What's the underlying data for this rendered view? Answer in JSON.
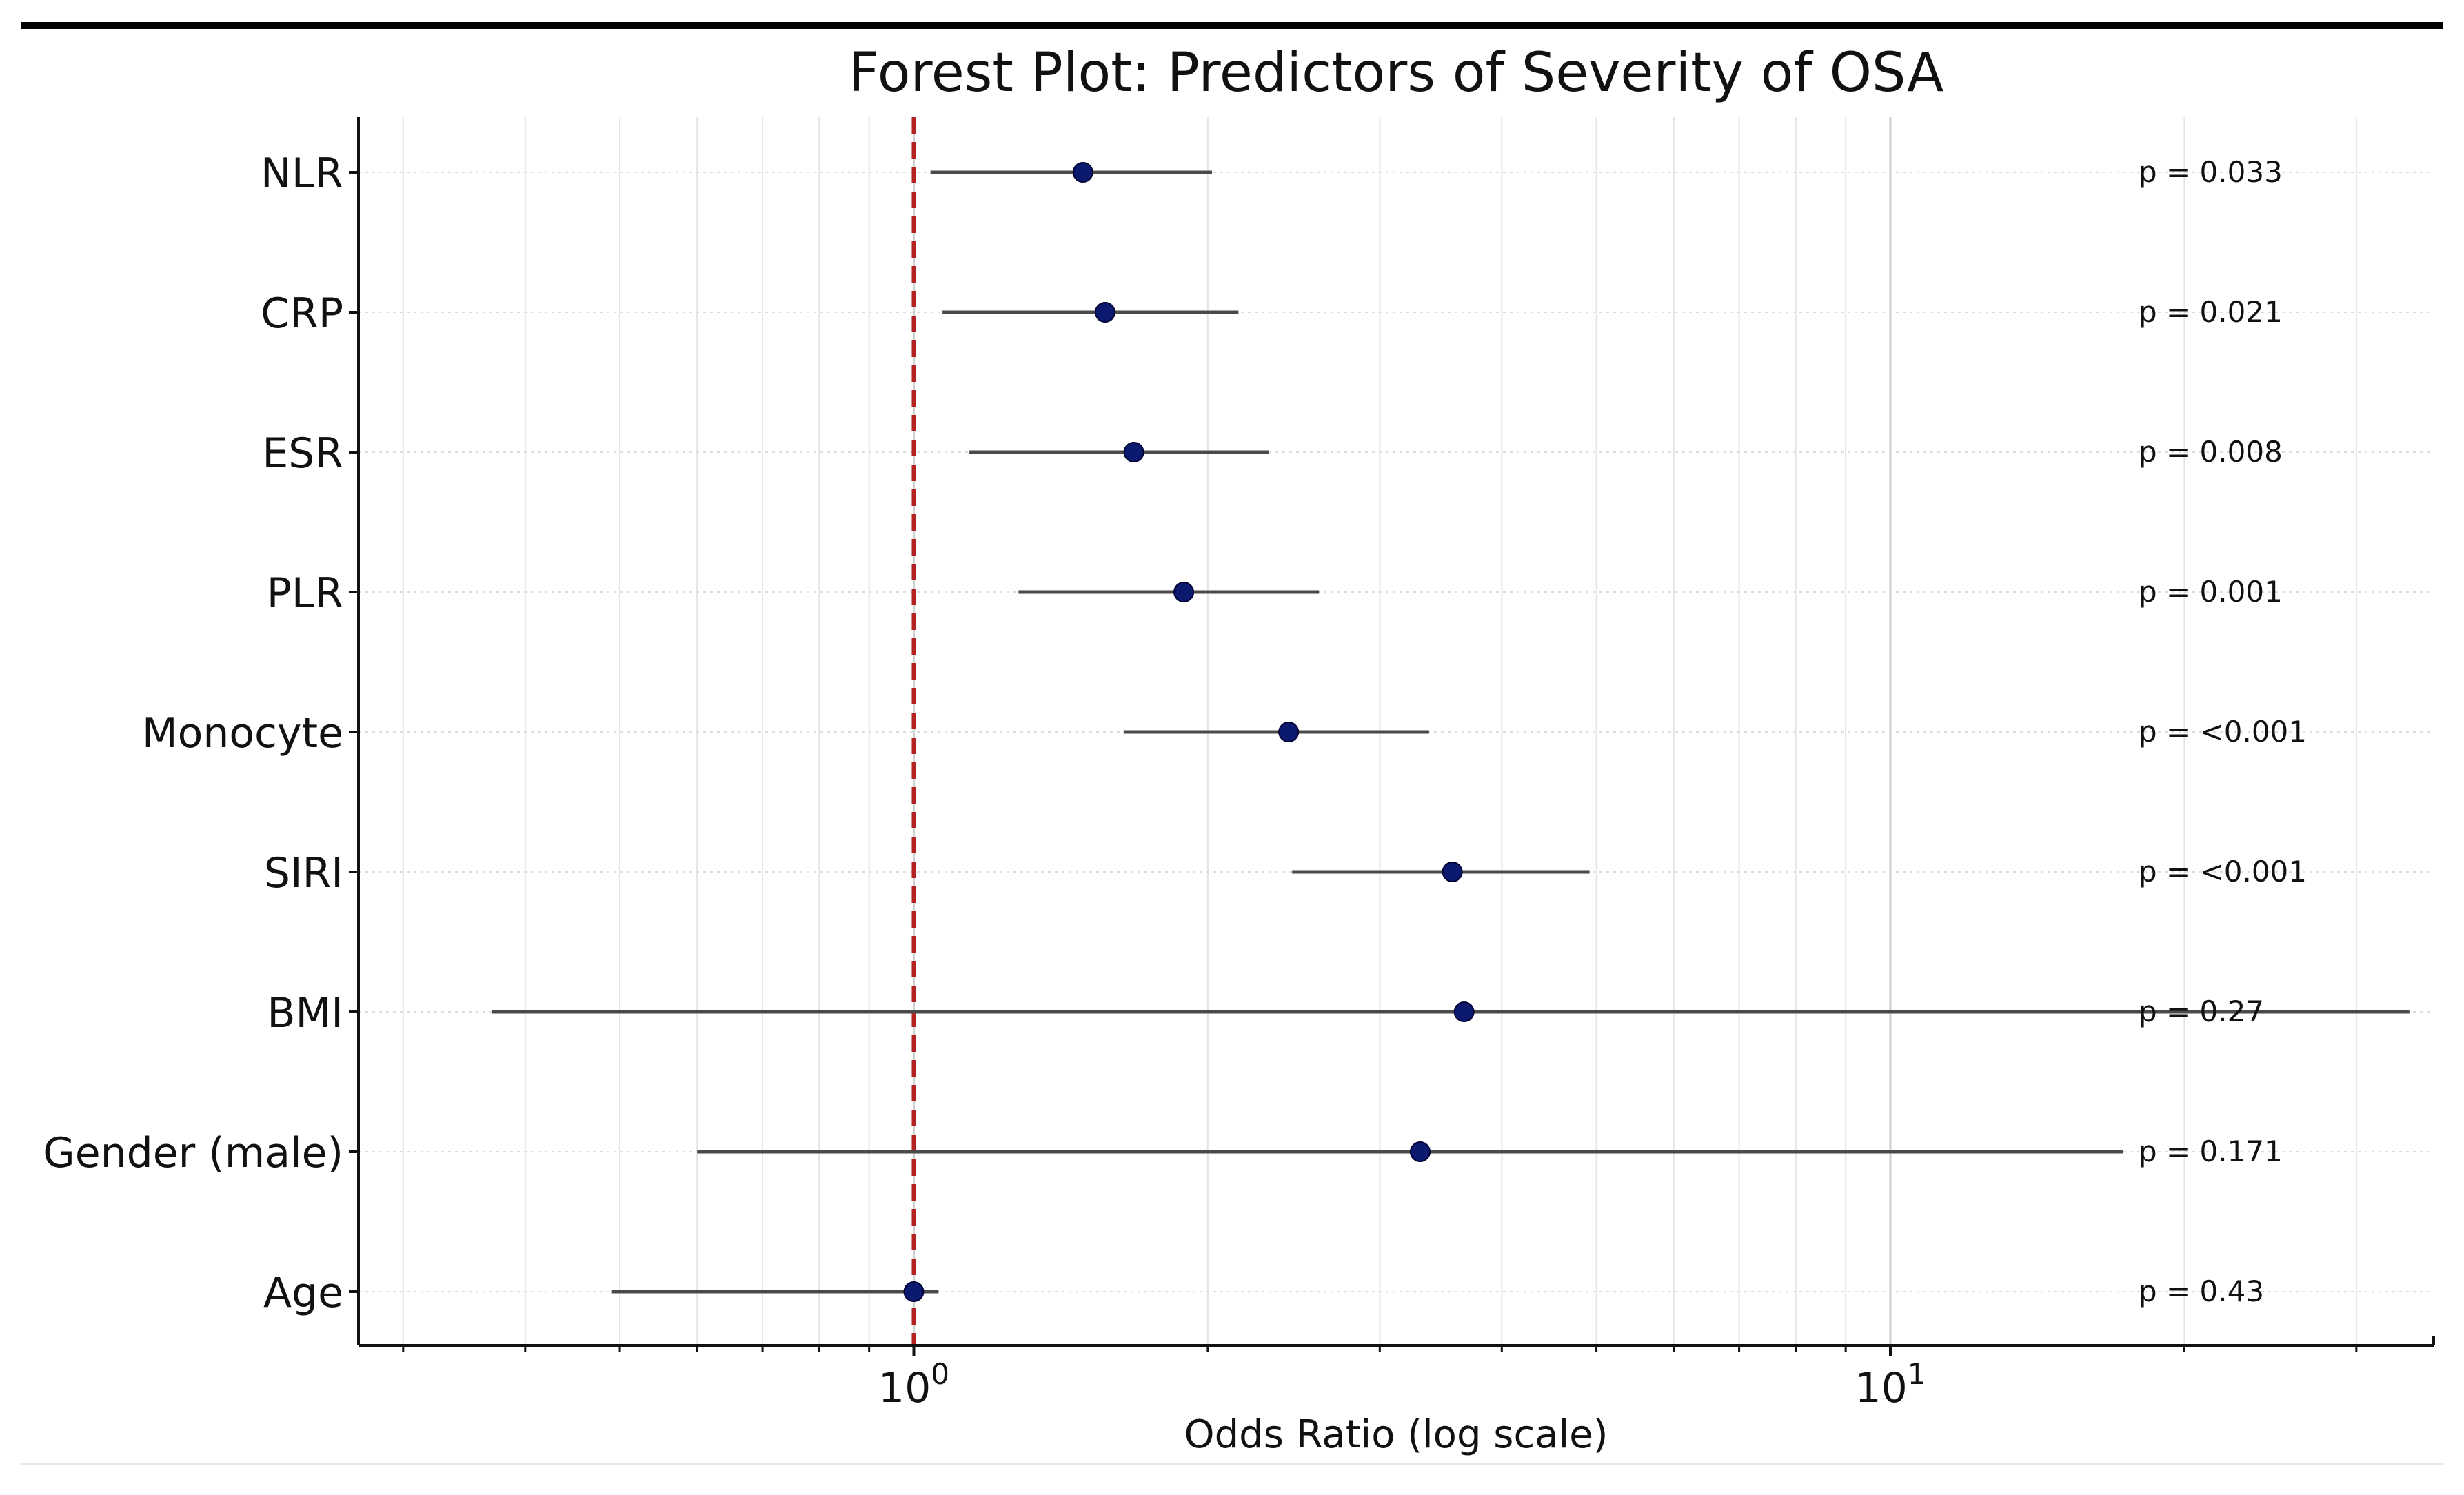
{
  "chart_data": {
    "type": "forest",
    "title": "Forest Plot: Predictors of Severity of OSA",
    "xlabel": "Odds Ratio (log scale)",
    "ylabel": "",
    "xscale": "log",
    "xlim": [
      0.27,
      36
    ],
    "grid": true,
    "reference_line": {
      "x": 1,
      "style": "dashed",
      "color": "#b22222"
    },
    "xticks": [
      {
        "value": 1,
        "base": "10",
        "exp": "0"
      },
      {
        "value": 10,
        "base": "10",
        "exp": "1"
      }
    ],
    "categories": [
      "NLR",
      "CRP",
      "ESR",
      "PLR",
      "Monocyte",
      "SIRI",
      "BMI",
      "Gender (male)",
      "Age"
    ],
    "or": [
      1.49,
      1.57,
      1.68,
      1.89,
      2.42,
      3.56,
      3.66,
      3.3,
      1.0
    ],
    "ci_low": [
      1.04,
      1.07,
      1.14,
      1.28,
      1.64,
      2.44,
      0.37,
      0.6,
      0.49
    ],
    "ci_high": [
      2.02,
      2.15,
      2.31,
      2.6,
      3.37,
      4.92,
      34.0,
      17.3,
      1.06
    ],
    "p_labels": [
      "p = 0.033",
      "p = 0.021",
      "p = 0.008",
      "p = 0.001",
      "p = <0.001",
      "p = <0.001",
      "p = 0.27",
      "p = 0.171",
      "p = 0.43"
    ],
    "marker_color": "#0b1a6e",
    "ci_color": "#4a4a4a"
  }
}
